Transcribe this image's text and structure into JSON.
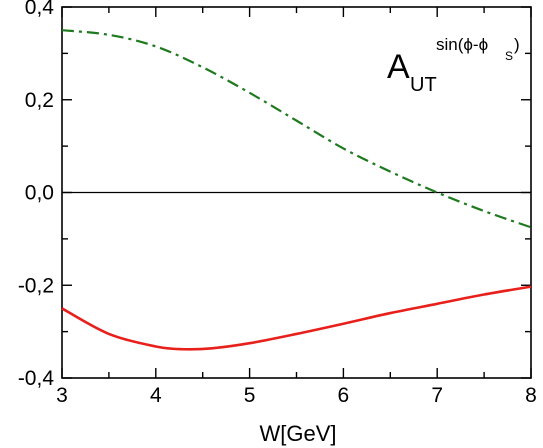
{
  "chart_data": {
    "type": "line",
    "title": "",
    "xlabel": "W[GeV]",
    "ylabel": "",
    "xlim": [
      3,
      8
    ],
    "ylim": [
      -0.4,
      0.4
    ],
    "x_ticks": [
      3,
      4,
      5,
      6,
      7,
      8
    ],
    "x_tick_labels": [
      "3",
      "4",
      "5",
      "6",
      "7",
      "8"
    ],
    "y_ticks": [
      -0.4,
      -0.2,
      0.0,
      0.2,
      0.4
    ],
    "y_tick_labels": [
      "-0,4",
      "-0,2",
      "0,0",
      "0,2",
      "0,4"
    ],
    "grid": false,
    "annotation": {
      "main": "A",
      "subscript": "UT",
      "superscript": "sin(ϕ-ϕ",
      "superscript_sub": "S",
      "superscript_close": ")"
    },
    "reference_line": {
      "y": 0.0,
      "color": "#000000"
    },
    "series": [
      {
        "style": "dash-dot",
        "color": "#1f7a1f",
        "x": [
          3.0,
          3.5,
          4.0,
          4.5,
          5.0,
          5.5,
          6.0,
          6.5,
          7.0,
          7.5,
          8.0
        ],
        "y": [
          0.35,
          0.34,
          0.315,
          0.27,
          0.215,
          0.155,
          0.095,
          0.045,
          0.0,
          -0.04,
          -0.075
        ]
      },
      {
        "style": "solid",
        "color": "#e8201c",
        "x": [
          3.0,
          3.5,
          4.0,
          4.3,
          4.6,
          5.0,
          5.5,
          6.0,
          6.5,
          7.0,
          7.5,
          8.0
        ],
        "y": [
          -0.25,
          -0.305,
          -0.332,
          -0.338,
          -0.336,
          -0.325,
          -0.305,
          -0.283,
          -0.26,
          -0.24,
          -0.22,
          -0.203
        ]
      }
    ]
  }
}
